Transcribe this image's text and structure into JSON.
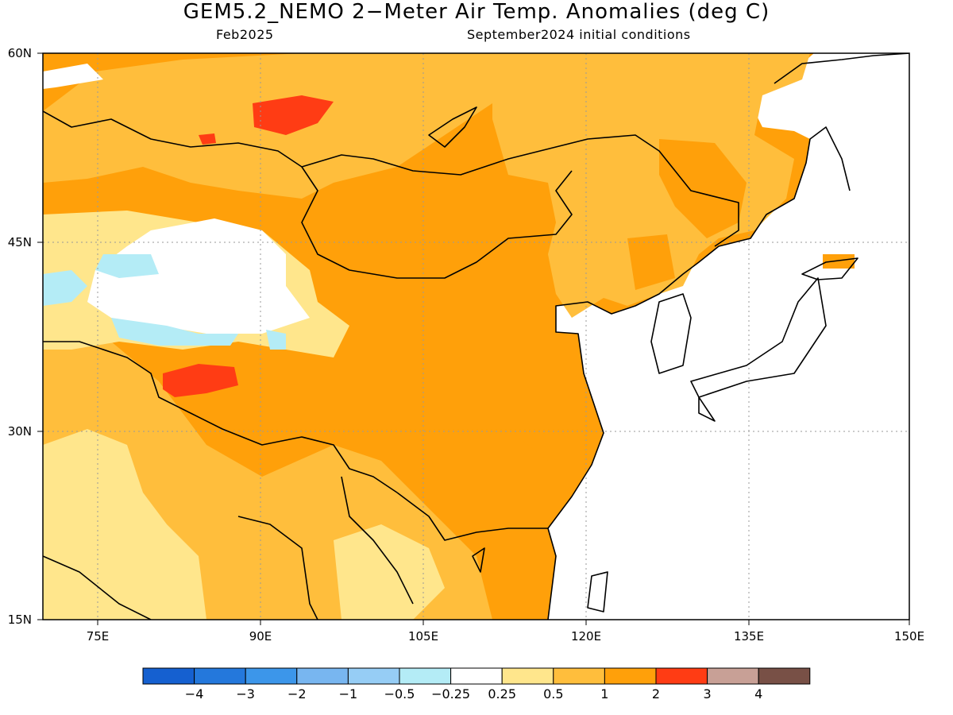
{
  "title": "GEM5.2_NEMO 2−Meter Air Temp. Anomalies (deg C)",
  "month": "Feb2025",
  "init": "September2024 initial conditions",
  "lat_labels": [
    "60N",
    "45N",
    "30N",
    "15N"
  ],
  "lon_labels": [
    "75E",
    "90E",
    "105E",
    "120E",
    "135E",
    "150E"
  ],
  "colors": {
    "water": "#ffffff",
    "coast": "#000000",
    "grid": "#9a9a9a"
  },
  "colorbar": {
    "labels": [
      "−4",
      "−3",
      "−2",
      "−1",
      "−0.5",
      "−0.25",
      "0.25",
      "0.5",
      "1",
      "2",
      "3",
      "4"
    ],
    "colors": [
      "#1560d0",
      "#2478dc",
      "#3c96ea",
      "#78b6f0",
      "#96cdf5",
      "#b4ecf6",
      "#ffffff",
      "#ffe68c",
      "#ffbe3c",
      "#ffa00a",
      "#ff3c14",
      "#c8a096",
      "#785046"
    ]
  }
}
